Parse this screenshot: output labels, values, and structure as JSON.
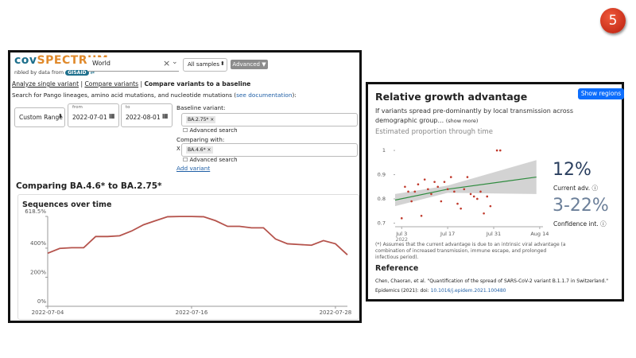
{
  "badge": "5",
  "left_panel": {
    "logo": [
      "cov",
      "SPECTRUM"
    ],
    "enabled_by": "nbled by data from",
    "gisaid": "GISAID",
    "search": "World",
    "samples": "All samples",
    "advanced": "Advanced",
    "nav": [
      "Analyze single variant",
      "Compare variants",
      "Compare variants to a baseline"
    ],
    "search_hint": [
      "Search for Pango lineages, amino acid mutations, and nucleotide mutations (",
      "see documentation",
      "):"
    ],
    "date_mode": "Custom Range",
    "from_label": "from",
    "from": "2022-07-01",
    "to_label": "to",
    "to": "2022-08-01",
    "baseline_label": "Baseline variant:",
    "baseline": "BA.2.75*",
    "advanced_search": "Advanced search",
    "comparing_label": "Comparing with:",
    "remove": "X",
    "comparing": "BA.4.6*",
    "add_variant": "Add variant",
    "heading": "Comparing BA.4.6* to BA.2.75*"
  },
  "right_panel": {
    "title": "Relative growth advantage",
    "show_regions": "Show regions",
    "description": "If variants spread pre-dominantly by local transmission across demographic group...",
    "show_more": "(show more)",
    "subtitle": "Estimated proportion through time",
    "current_value": "12%",
    "current_label": "Current adv.",
    "ci_value": "3-22%",
    "ci_label": "Confidence int.",
    "note": "(*) Assumes that the current advantage is due to an intrinsic viral advantage (a combination of increased transmission, immune escape, and prolonged infectious period).",
    "reference_title": "Reference",
    "reference": "Chen, Chaoran, et al. \"Quantification of the spread of SARS-CoV-2 variant B.1.1.7 in Switzerland.\"",
    "reference_source": "Epidemics (2021): doi:",
    "reference_doi": "10.1016/j.epidem.2021.100480"
  },
  "chart_data": [
    {
      "type": "line",
      "title": "Sequences over time",
      "x": [
        "2022-07-04",
        "2022-07-05",
        "2022-07-06",
        "2022-07-07",
        "2022-07-08",
        "2022-07-09",
        "2022-07-10",
        "2022-07-11",
        "2022-07-12",
        "2022-07-13",
        "2022-07-14",
        "2022-07-15",
        "2022-07-16",
        "2022-07-17",
        "2022-07-18",
        "2022-07-19",
        "2022-07-20",
        "2022-07-21",
        "2022-07-22",
        "2022-07-23",
        "2022-07-24",
        "2022-07-25",
        "2022-07-26",
        "2022-07-27",
        "2022-07-28",
        "2022-07-29"
      ],
      "values": [
        365,
        398,
        403,
        403,
        480,
        480,
        485,
        518,
        561,
        589,
        616,
        618,
        618,
        616,
        589,
        550,
        550,
        540,
        540,
        463,
        430,
        425,
        420,
        452,
        430,
        354
      ],
      "color": "#b5534c",
      "xlim": [
        "2022-07-04",
        "2022-07-29"
      ],
      "xticks": [
        "2022-07-04",
        "2022-07-16",
        "2022-07-28"
      ],
      "ylim": [
        0,
        618.5
      ],
      "yticks": [
        {
          "value": 0,
          "label": "0%"
        },
        {
          "value": 200,
          "label": "200%"
        },
        {
          "value": 400,
          "label": "400%"
        },
        {
          "value": 618.5,
          "label": "618.5%"
        }
      ]
    },
    {
      "type": "scatter",
      "x": [
        "2022-07-03",
        "2022-07-04",
        "2022-07-05",
        "2022-07-06",
        "2022-07-07",
        "2022-07-08",
        "2022-07-09",
        "2022-07-10",
        "2022-07-11",
        "2022-07-12",
        "2022-07-13",
        "2022-07-14",
        "2022-07-15",
        "2022-07-16",
        "2022-07-17",
        "2022-07-18",
        "2022-07-19",
        "2022-07-20",
        "2022-07-21",
        "2022-07-22",
        "2022-07-23",
        "2022-07-24",
        "2022-07-25",
        "2022-07-26",
        "2022-07-27",
        "2022-07-28",
        "2022-07-29",
        "2022-07-30",
        "2022-08-01",
        "2022-08-02"
      ],
      "values": [
        0.72,
        0.85,
        0.83,
        0.79,
        0.83,
        0.86,
        0.73,
        0.88,
        0.84,
        0.82,
        0.87,
        0.85,
        0.79,
        0.87,
        0.84,
        0.89,
        0.83,
        0.78,
        0.76,
        0.84,
        0.89,
        0.82,
        0.81,
        0.8,
        0.83,
        0.74,
        0.81,
        0.77,
        1,
        1
      ],
      "color": "#c0392b",
      "fit": {
        "x": [
          "2022-07-01",
          "2022-07-17",
          "2022-08-13"
        ],
        "values": [
          0.795,
          0.84,
          0.89
        ],
        "lower": [
          0.77,
          0.825,
          0.82
        ],
        "upper": [
          0.82,
          0.855,
          0.96
        ],
        "color": "#2e8b3e",
        "band_color": "#c8c8c8"
      },
      "xlim": [
        "2022-07-01",
        "2022-08-15"
      ],
      "xticks": [
        {
          "value": "2022-07-03",
          "label": "Jul 3"
        },
        {
          "value": "2022-07-17",
          "label": "Jul 17"
        },
        {
          "value": "2022-07-31",
          "label": "Jul 31"
        },
        {
          "value": "2022-08-14",
          "label": "Aug 14"
        }
      ],
      "year_label": "2022",
      "ylim": [
        0.685,
        1.02
      ],
      "yticks": [
        0.7,
        0.8,
        0.9,
        1
      ]
    }
  ]
}
